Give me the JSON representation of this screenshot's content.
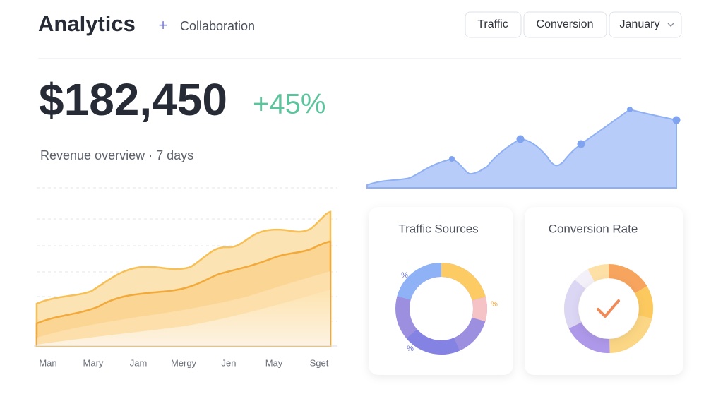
{
  "header": {
    "title": "Analytics",
    "plus": "+",
    "tab": "Collaboration",
    "buttons": [
      "Traffic",
      "Conversion",
      "January"
    ]
  },
  "kpi": {
    "value": "$182,450",
    "change": "+45%",
    "caption": "Revenue overview · 7 days"
  },
  "revenue_chart": {
    "months": [
      "Man",
      "Mary",
      "Jam",
      "Mergy",
      "Jen",
      "May",
      "Sget"
    ]
  },
  "cards": [
    {
      "title": "Traffic Sources",
      "labels": [
        "%",
        "%",
        "%"
      ]
    },
    {
      "title": "Conversion Rate"
    }
  ]
}
